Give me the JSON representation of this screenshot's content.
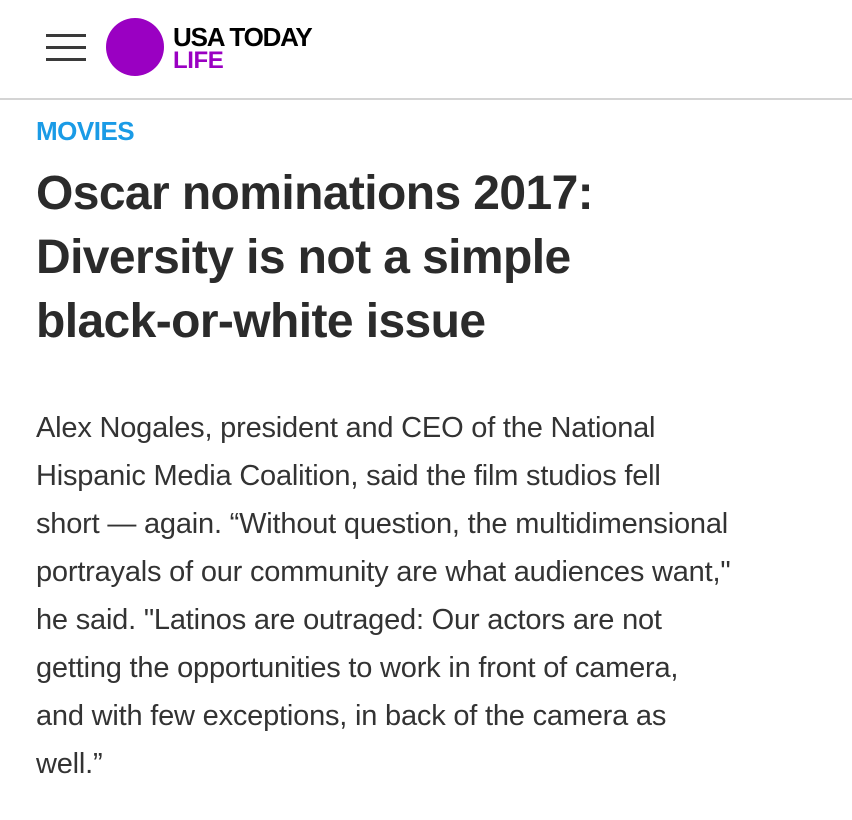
{
  "header": {
    "brand": "USA TODAY",
    "section": "LIFE",
    "menu_icon": "hamburger-menu-icon",
    "brand_color": "#9a00c2"
  },
  "article": {
    "section_label": "MOVIES",
    "section_color": "#1a9be6",
    "headline_lines": [
      "Oscar nominations 2017:",
      "Diversity is not a simple",
      "black-or-white issue"
    ],
    "body_lines": [
      "Alex Nogales, president and CEO of the National",
      "Hispanic Media Coalition, said the film studios fell",
      "short — again. “Without question, the multidimensional",
      "portrayals of our community are what audiences want,\"",
      "he said. \"Latinos are outraged: Our actors are not",
      "getting the opportunities to work in front of camera,",
      "and with few exceptions, in back of the camera as",
      "well.”"
    ]
  }
}
